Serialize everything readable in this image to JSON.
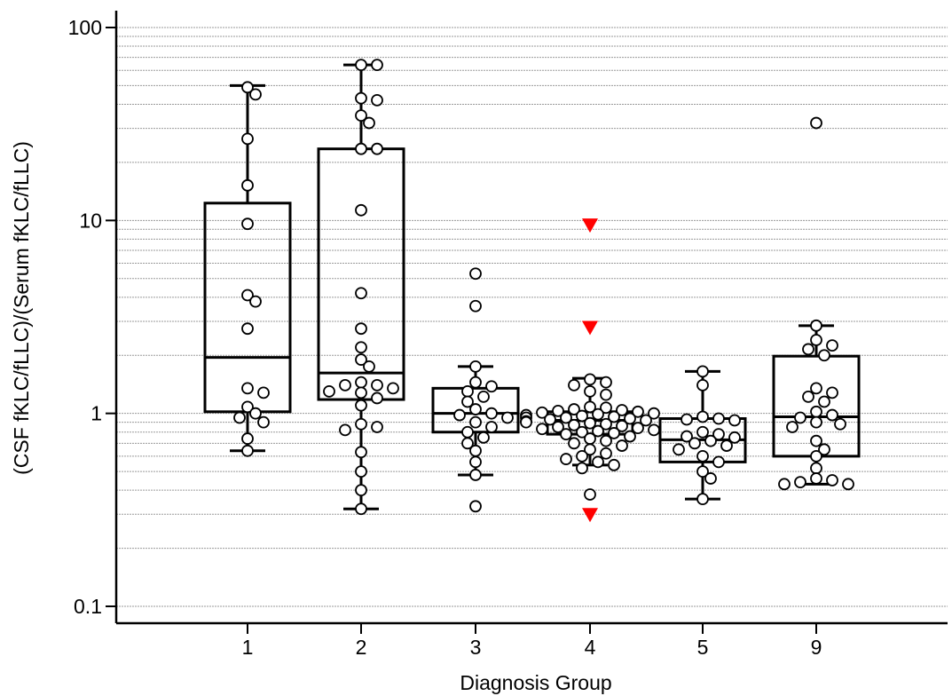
{
  "chart_data": {
    "type": "box-scatter",
    "xlabel": "Diagnosis Group",
    "ylabel": "(CSF fKLC/fLLC)/(Serum fKLC/fLLC)",
    "yscale": "log",
    "ylim": [
      0.1,
      100
    ],
    "yticks": [
      0.1,
      1,
      10,
      100
    ],
    "ytick_labels": [
      "0.1",
      "1",
      "10",
      "100"
    ],
    "grid": "horizontal minor dashed",
    "categories": [
      "1",
      "2",
      "3",
      "4",
      "5",
      "9"
    ],
    "colors": {
      "points": "#ffffff",
      "outline": "#000000",
      "outlier_marker": "#ff0000",
      "grid": "#9a9a9a"
    },
    "groups": [
      {
        "label": "1",
        "whisker_low": 0.64,
        "q1": 1.02,
        "median": 1.95,
        "q3": 12.3,
        "whisker_high": 50,
        "points": [
          49,
          45,
          26.5,
          15.2,
          9.6,
          4.1,
          3.8,
          2.75,
          1.35,
          1.28,
          1.08,
          1.0,
          0.95,
          0.9,
          0.74,
          0.64
        ]
      },
      {
        "label": "2",
        "whisker_low": 0.32,
        "q1": 1.18,
        "median": 1.62,
        "q3": 23.5,
        "whisker_high": 64,
        "points": [
          64,
          64,
          43,
          42,
          35,
          32,
          23.5,
          23.5,
          11.3,
          4.2,
          2.75,
          2.2,
          1.9,
          1.75,
          1.45,
          1.4,
          1.4,
          1.35,
          1.3,
          1.28,
          1.2,
          1.1,
          0.88,
          0.85,
          0.82,
          0.63,
          0.5,
          0.4,
          0.32
        ]
      },
      {
        "label": "3",
        "whisker_low": 0.48,
        "q1": 0.8,
        "median": 1.0,
        "q3": 1.35,
        "whisker_high": 1.75,
        "points": [
          5.3,
          3.6,
          1.75,
          1.45,
          1.38,
          1.3,
          1.22,
          1.15,
          1.05,
          1.0,
          0.98,
          0.95,
          0.9,
          0.85,
          0.8,
          0.75,
          0.7,
          0.64,
          0.56,
          0.48,
          0.33
        ]
      },
      {
        "label": "4",
        "whisker_low": 0.54,
        "q1": 0.78,
        "median": 0.92,
        "q3": 1.02,
        "whisker_high": 1.52,
        "outliers": [
          9.5,
          2.8,
          0.3
        ],
        "points": [
          1.5,
          1.45,
          1.4,
          1.3,
          1.25,
          1.08,
          1.07,
          1.05,
          1.04,
          1.03,
          1.02,
          1.01,
          1.0,
          0.99,
          0.98,
          0.97,
          0.96,
          0.95,
          0.95,
          0.94,
          0.93,
          0.92,
          0.91,
          0.9,
          0.89,
          0.88,
          0.87,
          0.86,
          0.85,
          0.84,
          0.83,
          0.82,
          0.81,
          0.8,
          0.79,
          0.78,
          0.76,
          0.74,
          0.72,
          0.7,
          0.68,
          0.65,
          0.62,
          0.6,
          0.58,
          0.56,
          0.54,
          0.52,
          0.38
        ]
      },
      {
        "label": "5",
        "whisker_low": 0.36,
        "q1": 0.56,
        "median": 0.73,
        "q3": 0.94,
        "whisker_high": 1.65,
        "points": [
          1.65,
          1.4,
          0.96,
          0.94,
          0.93,
          0.92,
          0.8,
          0.78,
          0.76,
          0.75,
          0.72,
          0.7,
          0.68,
          0.65,
          0.6,
          0.56,
          0.5,
          0.46,
          0.36
        ]
      },
      {
        "label": "9",
        "whisker_low": 0.43,
        "q1": 0.6,
        "median": 0.96,
        "q3": 1.98,
        "whisker_high": 2.85,
        "points": [
          32,
          2.85,
          2.4,
          2.25,
          2.15,
          2.0,
          1.35,
          1.28,
          1.22,
          1.15,
          1.02,
          0.98,
          0.95,
          0.9,
          0.88,
          0.85,
          0.72,
          0.65,
          0.6,
          0.52,
          0.46,
          0.45,
          0.44,
          0.43,
          0.43
        ]
      }
    ]
  }
}
